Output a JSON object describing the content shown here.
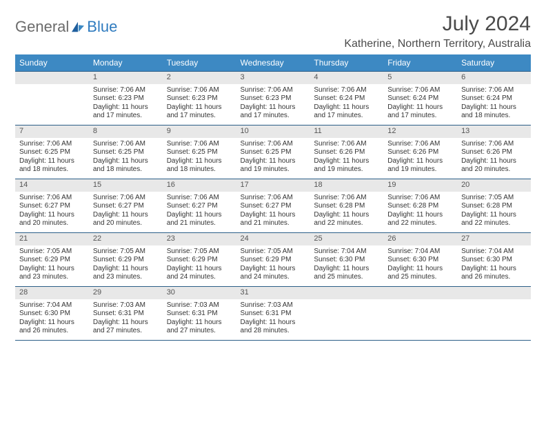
{
  "logo": {
    "general": "General",
    "blue": "Blue"
  },
  "title": "July 2024",
  "subtitle": "Katherine, Northern Territory, Australia",
  "colors": {
    "header_bg": "#3d89c3",
    "header_text": "#ffffff",
    "border": "#2a5d87",
    "daynum_bg": "#e8e8e8",
    "daynum_text": "#555555",
    "body_text": "#333333",
    "title_text": "#4a4a4a",
    "logo_gray": "#6b6b6b",
    "logo_blue": "#2f7bbf"
  },
  "font_sizes": {
    "title": 30,
    "subtitle": 16,
    "weekday": 12,
    "daynum": 11,
    "cell": 10
  },
  "weekdays": [
    "Sunday",
    "Monday",
    "Tuesday",
    "Wednesday",
    "Thursday",
    "Friday",
    "Saturday"
  ],
  "weeks": [
    [
      null,
      {
        "n": "1",
        "sr": "Sunrise: 7:06 AM",
        "ss": "Sunset: 6:23 PM",
        "d1": "Daylight: 11 hours",
        "d2": "and 17 minutes."
      },
      {
        "n": "2",
        "sr": "Sunrise: 7:06 AM",
        "ss": "Sunset: 6:23 PM",
        "d1": "Daylight: 11 hours",
        "d2": "and 17 minutes."
      },
      {
        "n": "3",
        "sr": "Sunrise: 7:06 AM",
        "ss": "Sunset: 6:23 PM",
        "d1": "Daylight: 11 hours",
        "d2": "and 17 minutes."
      },
      {
        "n": "4",
        "sr": "Sunrise: 7:06 AM",
        "ss": "Sunset: 6:24 PM",
        "d1": "Daylight: 11 hours",
        "d2": "and 17 minutes."
      },
      {
        "n": "5",
        "sr": "Sunrise: 7:06 AM",
        "ss": "Sunset: 6:24 PM",
        "d1": "Daylight: 11 hours",
        "d2": "and 17 minutes."
      },
      {
        "n": "6",
        "sr": "Sunrise: 7:06 AM",
        "ss": "Sunset: 6:24 PM",
        "d1": "Daylight: 11 hours",
        "d2": "and 18 minutes."
      }
    ],
    [
      {
        "n": "7",
        "sr": "Sunrise: 7:06 AM",
        "ss": "Sunset: 6:25 PM",
        "d1": "Daylight: 11 hours",
        "d2": "and 18 minutes."
      },
      {
        "n": "8",
        "sr": "Sunrise: 7:06 AM",
        "ss": "Sunset: 6:25 PM",
        "d1": "Daylight: 11 hours",
        "d2": "and 18 minutes."
      },
      {
        "n": "9",
        "sr": "Sunrise: 7:06 AM",
        "ss": "Sunset: 6:25 PM",
        "d1": "Daylight: 11 hours",
        "d2": "and 18 minutes."
      },
      {
        "n": "10",
        "sr": "Sunrise: 7:06 AM",
        "ss": "Sunset: 6:25 PM",
        "d1": "Daylight: 11 hours",
        "d2": "and 19 minutes."
      },
      {
        "n": "11",
        "sr": "Sunrise: 7:06 AM",
        "ss": "Sunset: 6:26 PM",
        "d1": "Daylight: 11 hours",
        "d2": "and 19 minutes."
      },
      {
        "n": "12",
        "sr": "Sunrise: 7:06 AM",
        "ss": "Sunset: 6:26 PM",
        "d1": "Daylight: 11 hours",
        "d2": "and 19 minutes."
      },
      {
        "n": "13",
        "sr": "Sunrise: 7:06 AM",
        "ss": "Sunset: 6:26 PM",
        "d1": "Daylight: 11 hours",
        "d2": "and 20 minutes."
      }
    ],
    [
      {
        "n": "14",
        "sr": "Sunrise: 7:06 AM",
        "ss": "Sunset: 6:27 PM",
        "d1": "Daylight: 11 hours",
        "d2": "and 20 minutes."
      },
      {
        "n": "15",
        "sr": "Sunrise: 7:06 AM",
        "ss": "Sunset: 6:27 PM",
        "d1": "Daylight: 11 hours",
        "d2": "and 20 minutes."
      },
      {
        "n": "16",
        "sr": "Sunrise: 7:06 AM",
        "ss": "Sunset: 6:27 PM",
        "d1": "Daylight: 11 hours",
        "d2": "and 21 minutes."
      },
      {
        "n": "17",
        "sr": "Sunrise: 7:06 AM",
        "ss": "Sunset: 6:27 PM",
        "d1": "Daylight: 11 hours",
        "d2": "and 21 minutes."
      },
      {
        "n": "18",
        "sr": "Sunrise: 7:06 AM",
        "ss": "Sunset: 6:28 PM",
        "d1": "Daylight: 11 hours",
        "d2": "and 22 minutes."
      },
      {
        "n": "19",
        "sr": "Sunrise: 7:06 AM",
        "ss": "Sunset: 6:28 PM",
        "d1": "Daylight: 11 hours",
        "d2": "and 22 minutes."
      },
      {
        "n": "20",
        "sr": "Sunrise: 7:05 AM",
        "ss": "Sunset: 6:28 PM",
        "d1": "Daylight: 11 hours",
        "d2": "and 22 minutes."
      }
    ],
    [
      {
        "n": "21",
        "sr": "Sunrise: 7:05 AM",
        "ss": "Sunset: 6:29 PM",
        "d1": "Daylight: 11 hours",
        "d2": "and 23 minutes."
      },
      {
        "n": "22",
        "sr": "Sunrise: 7:05 AM",
        "ss": "Sunset: 6:29 PM",
        "d1": "Daylight: 11 hours",
        "d2": "and 23 minutes."
      },
      {
        "n": "23",
        "sr": "Sunrise: 7:05 AM",
        "ss": "Sunset: 6:29 PM",
        "d1": "Daylight: 11 hours",
        "d2": "and 24 minutes."
      },
      {
        "n": "24",
        "sr": "Sunrise: 7:05 AM",
        "ss": "Sunset: 6:29 PM",
        "d1": "Daylight: 11 hours",
        "d2": "and 24 minutes."
      },
      {
        "n": "25",
        "sr": "Sunrise: 7:04 AM",
        "ss": "Sunset: 6:30 PM",
        "d1": "Daylight: 11 hours",
        "d2": "and 25 minutes."
      },
      {
        "n": "26",
        "sr": "Sunrise: 7:04 AM",
        "ss": "Sunset: 6:30 PM",
        "d1": "Daylight: 11 hours",
        "d2": "and 25 minutes."
      },
      {
        "n": "27",
        "sr": "Sunrise: 7:04 AM",
        "ss": "Sunset: 6:30 PM",
        "d1": "Daylight: 11 hours",
        "d2": "and 26 minutes."
      }
    ],
    [
      {
        "n": "28",
        "sr": "Sunrise: 7:04 AM",
        "ss": "Sunset: 6:30 PM",
        "d1": "Daylight: 11 hours",
        "d2": "and 26 minutes."
      },
      {
        "n": "29",
        "sr": "Sunrise: 7:03 AM",
        "ss": "Sunset: 6:31 PM",
        "d1": "Daylight: 11 hours",
        "d2": "and 27 minutes."
      },
      {
        "n": "30",
        "sr": "Sunrise: 7:03 AM",
        "ss": "Sunset: 6:31 PM",
        "d1": "Daylight: 11 hours",
        "d2": "and 27 minutes."
      },
      {
        "n": "31",
        "sr": "Sunrise: 7:03 AM",
        "ss": "Sunset: 6:31 PM",
        "d1": "Daylight: 11 hours",
        "d2": "and 28 minutes."
      },
      null,
      null,
      null
    ]
  ]
}
